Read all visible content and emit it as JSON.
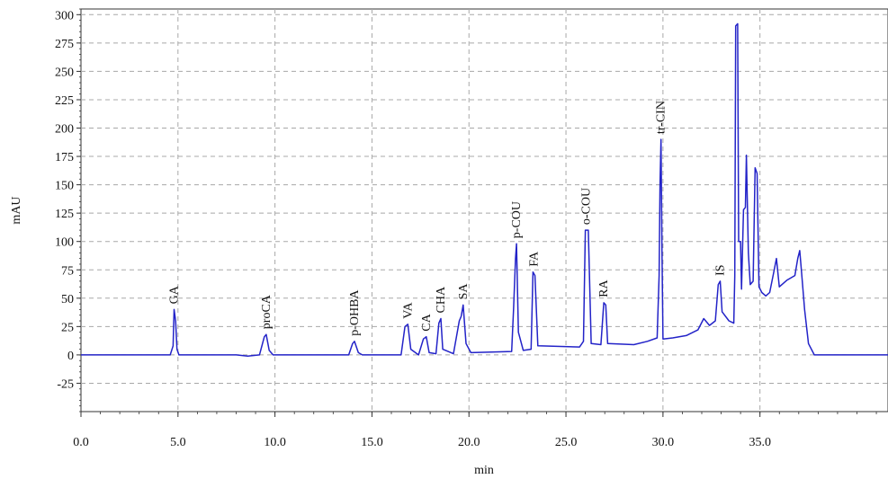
{
  "chart_data": {
    "type": "line",
    "title": "",
    "xlabel": "min",
    "ylabel": "mAU",
    "xlim": [
      0,
      41.6
    ],
    "ylim": [
      -50,
      305
    ],
    "xticks": [
      {
        "value": 0,
        "label": "0.0"
      },
      {
        "value": 5,
        "label": "5.0"
      },
      {
        "value": 10,
        "label": "10.0"
      },
      {
        "value": 15,
        "label": "15.0"
      },
      {
        "value": 20,
        "label": "20.0"
      },
      {
        "value": 25,
        "label": "25.0"
      },
      {
        "value": 30,
        "label": "30.0"
      },
      {
        "value": 35,
        "label": "35.0"
      }
    ],
    "yticks": [
      {
        "value": -25,
        "label": "-25"
      },
      {
        "value": 0,
        "label": "0"
      },
      {
        "value": 25,
        "label": "25"
      },
      {
        "value": 50,
        "label": "50"
      },
      {
        "value": 75,
        "label": "75"
      },
      {
        "value": 100,
        "label": "100"
      },
      {
        "value": 125,
        "label": "125"
      },
      {
        "value": 150,
        "label": "150"
      },
      {
        "value": 175,
        "label": "175"
      },
      {
        "value": 200,
        "label": "200"
      },
      {
        "value": 225,
        "label": "225"
      },
      {
        "value": 250,
        "label": "250"
      },
      {
        "value": 275,
        "label": "275"
      },
      {
        "value": 300,
        "label": "300"
      }
    ],
    "grid": true,
    "colors": {
      "line": "#2323c8",
      "grid": "#a8a8a8",
      "axis": "#333333"
    },
    "series": [
      {
        "points": [
          [
            0,
            0
          ],
          [
            4.6,
            0
          ],
          [
            4.75,
            8
          ],
          [
            4.8,
            40
          ],
          [
            4.88,
            30
          ],
          [
            4.95,
            5
          ],
          [
            5.05,
            0
          ],
          [
            8.0,
            0
          ],
          [
            8.6,
            -1
          ],
          [
            9.2,
            0
          ],
          [
            9.45,
            16
          ],
          [
            9.55,
            18
          ],
          [
            9.7,
            4
          ],
          [
            9.9,
            0
          ],
          [
            13.8,
            0
          ],
          [
            14.0,
            10
          ],
          [
            14.1,
            12
          ],
          [
            14.3,
            2
          ],
          [
            14.5,
            0
          ],
          [
            16.5,
            0
          ],
          [
            16.7,
            25
          ],
          [
            16.85,
            27
          ],
          [
            17.0,
            5
          ],
          [
            17.4,
            0
          ],
          [
            17.65,
            14
          ],
          [
            17.8,
            16
          ],
          [
            17.95,
            2
          ],
          [
            18.3,
            1
          ],
          [
            18.45,
            28
          ],
          [
            18.55,
            32
          ],
          [
            18.65,
            5
          ],
          [
            19.2,
            1
          ],
          [
            19.5,
            30
          ],
          [
            19.6,
            34
          ],
          [
            19.7,
            44
          ],
          [
            19.85,
            10
          ],
          [
            20.1,
            2
          ],
          [
            22.2,
            3
          ],
          [
            22.3,
            40
          ],
          [
            22.4,
            85
          ],
          [
            22.45,
            98
          ],
          [
            22.55,
            20
          ],
          [
            22.8,
            4
          ],
          [
            23.2,
            5
          ],
          [
            23.3,
            73
          ],
          [
            23.4,
            70
          ],
          [
            23.55,
            8
          ],
          [
            25.7,
            7
          ],
          [
            25.9,
            12
          ],
          [
            26.0,
            110
          ],
          [
            26.15,
            110
          ],
          [
            26.3,
            10
          ],
          [
            26.8,
            9
          ],
          [
            26.95,
            46
          ],
          [
            27.05,
            44
          ],
          [
            27.15,
            10
          ],
          [
            28.5,
            9
          ],
          [
            29.2,
            12
          ],
          [
            29.7,
            15
          ],
          [
            29.8,
            70
          ],
          [
            29.85,
            150
          ],
          [
            29.9,
            190
          ],
          [
            29.95,
            90
          ],
          [
            30.0,
            14
          ],
          [
            30.5,
            15
          ],
          [
            31.2,
            17
          ],
          [
            31.8,
            22
          ],
          [
            32.1,
            32
          ],
          [
            32.4,
            26
          ],
          [
            32.7,
            30
          ],
          [
            32.85,
            62
          ],
          [
            32.95,
            65
          ],
          [
            33.05,
            38
          ],
          [
            33.4,
            30
          ],
          [
            33.65,
            28
          ],
          [
            33.7,
            70
          ],
          [
            33.75,
            290
          ],
          [
            33.85,
            292
          ],
          [
            33.9,
            100
          ],
          [
            34.0,
            100
          ],
          [
            34.05,
            58
          ],
          [
            34.15,
            128
          ],
          [
            34.25,
            130
          ],
          [
            34.3,
            176
          ],
          [
            34.4,
            90
          ],
          [
            34.5,
            62
          ],
          [
            34.65,
            65
          ],
          [
            34.75,
            165
          ],
          [
            34.85,
            160
          ],
          [
            34.95,
            60
          ],
          [
            35.1,
            55
          ],
          [
            35.3,
            52
          ],
          [
            35.5,
            55
          ],
          [
            35.7,
            72
          ],
          [
            35.85,
            85
          ],
          [
            36.0,
            60
          ],
          [
            36.4,
            66
          ],
          [
            36.8,
            70
          ],
          [
            36.95,
            85
          ],
          [
            37.05,
            92
          ],
          [
            37.15,
            72
          ],
          [
            37.3,
            40
          ],
          [
            37.5,
            10
          ],
          [
            37.8,
            0
          ],
          [
            41.6,
            0
          ]
        ]
      }
    ],
    "annotations": [
      {
        "text": "GA",
        "x": 4.8,
        "y": 40
      },
      {
        "text": "proCA",
        "x": 9.55,
        "y": 18
      },
      {
        "text": "p-OHBA",
        "x": 14.1,
        "y": 12
      },
      {
        "text": "VA",
        "x": 16.85,
        "y": 27
      },
      {
        "text": "CA",
        "x": 17.8,
        "y": 16
      },
      {
        "text": "CHA",
        "x": 18.55,
        "y": 32
      },
      {
        "text": "SA",
        "x": 19.7,
        "y": 44
      },
      {
        "text": "p-COU",
        "x": 22.45,
        "y": 98
      },
      {
        "text": "FA",
        "x": 23.35,
        "y": 73
      },
      {
        "text": "o-COU",
        "x": 26.05,
        "y": 110
      },
      {
        "text": "RA",
        "x": 26.95,
        "y": 46
      },
      {
        "text": "tr-CIN",
        "x": 29.9,
        "y": 190
      },
      {
        "text": "IS",
        "x": 32.95,
        "y": 65
      }
    ]
  }
}
